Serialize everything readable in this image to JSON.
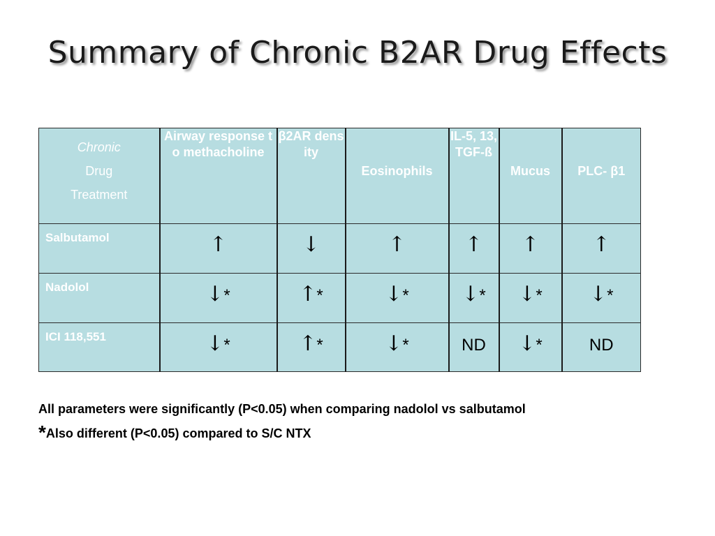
{
  "title": "Summary of Chronic B2AR Drug Effects",
  "table": {
    "header": {
      "first_line1": "Chronic",
      "first_line2": "Drug",
      "first_line3": "Treatment",
      "columns": [
        "Airway response to methacholine",
        "β2AR density",
        "Eosinophils",
        "IL-5, 13, TGF-ß",
        "Mucus",
        "PLC- β1"
      ]
    },
    "rows": [
      {
        "name": "Salbutamol",
        "cells": [
          {
            "arrow": "↑",
            "mark": ""
          },
          {
            "arrow": "↓",
            "mark": ""
          },
          {
            "arrow": "↑",
            "mark": ""
          },
          {
            "arrow": "↑",
            "mark": ""
          },
          {
            "arrow": "↑",
            "mark": ""
          },
          {
            "arrow": "↑",
            "mark": ""
          }
        ]
      },
      {
        "name": "Nadolol",
        "cells": [
          {
            "arrow": "↓",
            "mark": "*"
          },
          {
            "arrow": "↑",
            "mark": "*"
          },
          {
            "arrow": "↓",
            "mark": "*"
          },
          {
            "arrow": "↓",
            "mark": "*"
          },
          {
            "arrow": "↓",
            "mark": "*"
          },
          {
            "arrow": "↓",
            "mark": "*"
          }
        ]
      },
      {
        "name": "ICI 118,551",
        "cells": [
          {
            "arrow": "↓",
            "mark": "*"
          },
          {
            "arrow": "↑",
            "mark": "*"
          },
          {
            "arrow": "↓",
            "mark": "*"
          },
          {
            "arrow": "",
            "mark": "ND"
          },
          {
            "arrow": "↓",
            "mark": "*"
          },
          {
            "arrow": "",
            "mark": "ND"
          }
        ]
      }
    ]
  },
  "notes": {
    "line1": "All parameters were significantly (P<0.05) when comparing nadolol vs salbutamol",
    "line2_star": "*",
    "line2": "Also different (P<0.05) compared to S/C NTX"
  },
  "colors": {
    "table_fill": "#b7dde1",
    "header_text": "#ffffff"
  }
}
